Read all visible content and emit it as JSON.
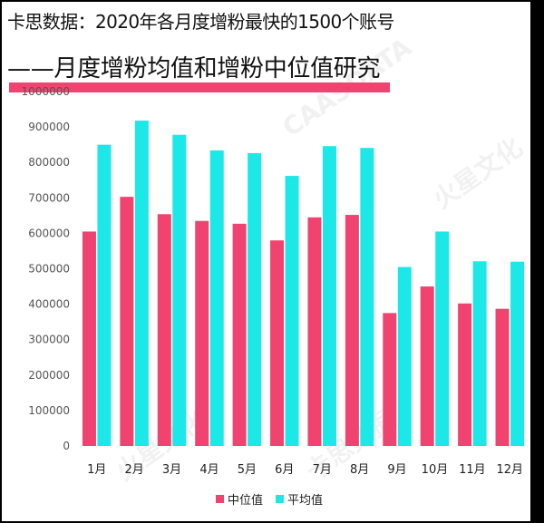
{
  "title_line1": "卡思数据：2020年各月度增粉最快的1500个账号",
  "title_line2": "——月度增粉均值和增粉中位值研究",
  "colors": {
    "median": "#f0436f",
    "mean": "#1de8e8",
    "accent": "#f0436f"
  },
  "watermarks": [
    "火星文化",
    "CAASDATA",
    "火星文化",
    "卡思数据"
  ],
  "chart_data": {
    "type": "bar",
    "title": "",
    "xlabel": "",
    "ylabel": "",
    "categories": [
      "1月",
      "2月",
      "3月",
      "4月",
      "5月",
      "6月",
      "7月",
      "8月",
      "9月",
      "10月",
      "11月",
      "12月"
    ],
    "series": [
      {
        "name": "中位值",
        "values": [
          605000,
          703000,
          654000,
          635000,
          627000,
          580000,
          645000,
          652000,
          375000,
          450000,
          402000,
          387000
        ]
      },
      {
        "name": "平均值",
        "values": [
          850000,
          918000,
          878000,
          834000,
          826000,
          762000,
          846000,
          841000,
          505000,
          605000,
          521000,
          520000
        ]
      }
    ],
    "ylim": [
      0,
      1000000
    ],
    "yticks": [
      "0",
      "100000",
      "200000",
      "300000",
      "400000",
      "500000",
      "600000",
      "700000",
      "800000",
      "900000",
      "1000000"
    ],
    "grid": false,
    "legend": "bottom-center"
  }
}
